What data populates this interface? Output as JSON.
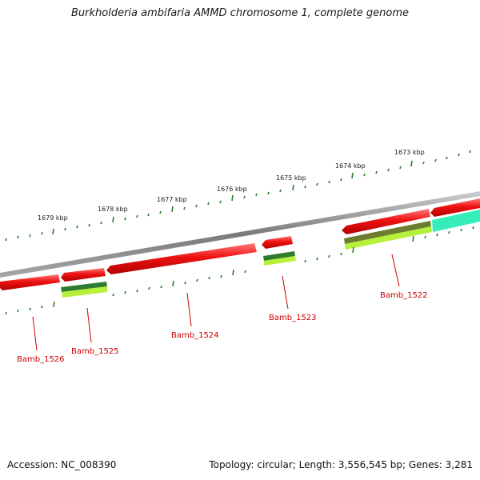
{
  "title": "Burkholderia ambifaria AMMD chromosome 1, complete genome",
  "footer": {
    "accession": "Accession: NC_008390",
    "summary": "Topology: circular; Length: 3,556,545 bp; Genes: 3,281"
  },
  "scale_labels": [
    "1679 kbp",
    "1678 kbp",
    "1677 kbp",
    "1676 kbp",
    "1675 kbp",
    "1674 kbp",
    "1673 kbp"
  ],
  "genes": [
    {
      "name": "Bamb_1526",
      "strand": "reverse"
    },
    {
      "name": "Bamb_1525",
      "strand": "reverse"
    },
    {
      "name": "Bamb_1524",
      "strand": "reverse"
    },
    {
      "name": "Bamb_1523",
      "strand": "reverse"
    },
    {
      "name": "Bamb_1522",
      "strand": "reverse"
    }
  ],
  "colors": {
    "backbone": "#8a8a8a",
    "gene_red": "#ee1111",
    "tick_green": "#2e7d32",
    "label_red": "#cc0000",
    "cds_dark_green": "#2e7d2e",
    "cds_light_green": "#b5f03a",
    "cds_cyan": "#33eebb"
  }
}
